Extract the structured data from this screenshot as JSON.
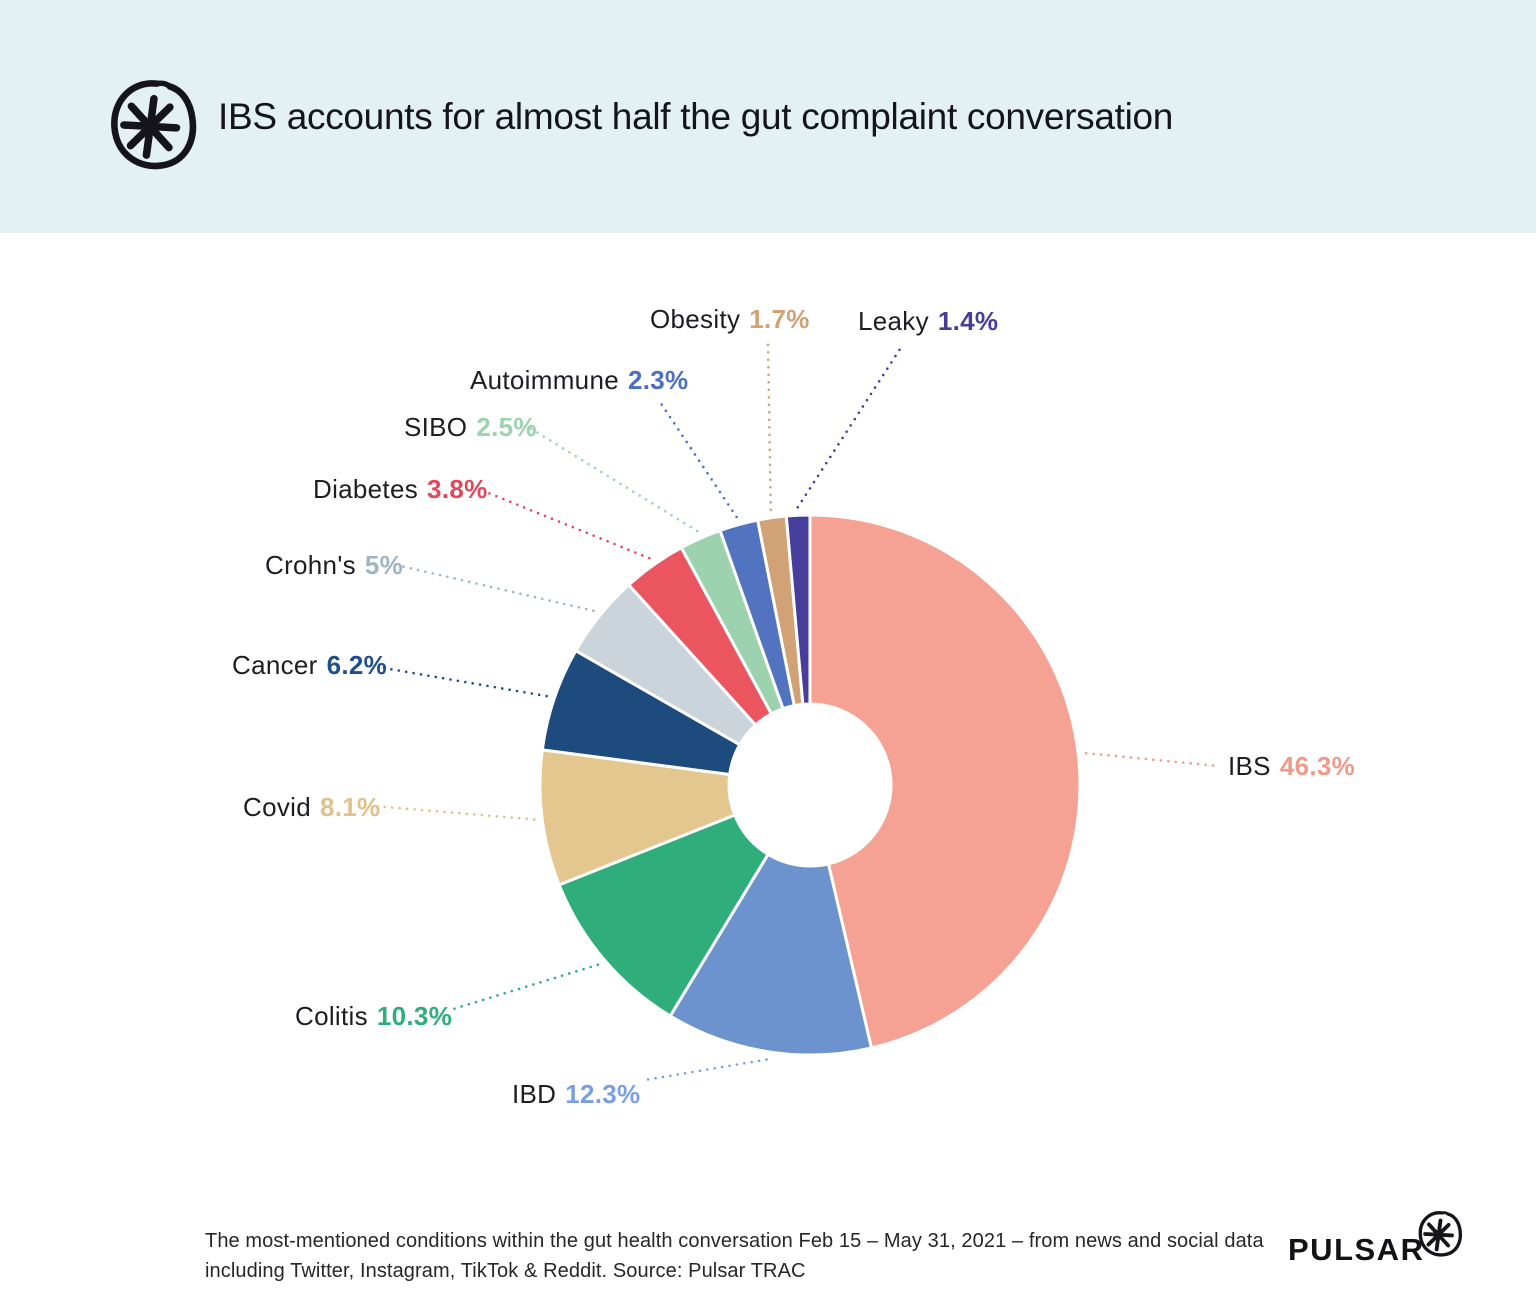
{
  "header": {
    "title": "IBS accounts for almost half the gut complaint conversation"
  },
  "icons": {
    "header_logo": "asterisk-in-circle",
    "brand_logo": "asterisk-in-circle"
  },
  "chart_data": {
    "type": "pie",
    "donut": true,
    "title": "IBS accounts for almost half the gut complaint conversation",
    "categories": [
      "IBS",
      "IBD",
      "Colitis",
      "Covid",
      "Cancer",
      "Crohn's",
      "Diabetes",
      "SIBO",
      "Autoimmune",
      "Obesity",
      "Leaky"
    ],
    "values": [
      46.3,
      12.3,
      10.3,
      8.1,
      6.2,
      5,
      3.8,
      2.5,
      2.3,
      1.7,
      1.4
    ],
    "percent_labels": [
      "46.3%",
      "12.3%",
      "10.3%",
      "8.1%",
      "6.2%",
      "5%",
      "3.8%",
      "2.5%",
      "2.3%",
      "1.7%",
      "1.4%"
    ],
    "colors": [
      "#F5A193",
      "#6C93CE",
      "#2FAD7B",
      "#E4C78F",
      "#1D4B7D",
      "#CBD4DA",
      "#EA5560",
      "#9DD2AE",
      "#5273C0",
      "#D0A275",
      "#473D9B"
    ],
    "percent_label_colors": [
      "#EF9A8B",
      "#7BA0E2",
      "#2FAD7B",
      "#DFC189",
      "#1F4E8C",
      "#9FB5C3",
      "#E3475A",
      "#9DD2AE",
      "#4C6FBF",
      "#D0A275",
      "#473D9B"
    ],
    "unit": "%",
    "start_angle_deg": 0,
    "clockwise": true,
    "legend_position": "callout-labels"
  },
  "footer": {
    "caption_line1": "The most-mentioned conditions within the gut health conversation Feb 15 – May 31, 2021 – from news and social data",
    "caption_line2": "including Twitter, Instagram, TikTok & Reddit. Source: Pulsar TRAC",
    "brand": "PULSAR"
  }
}
